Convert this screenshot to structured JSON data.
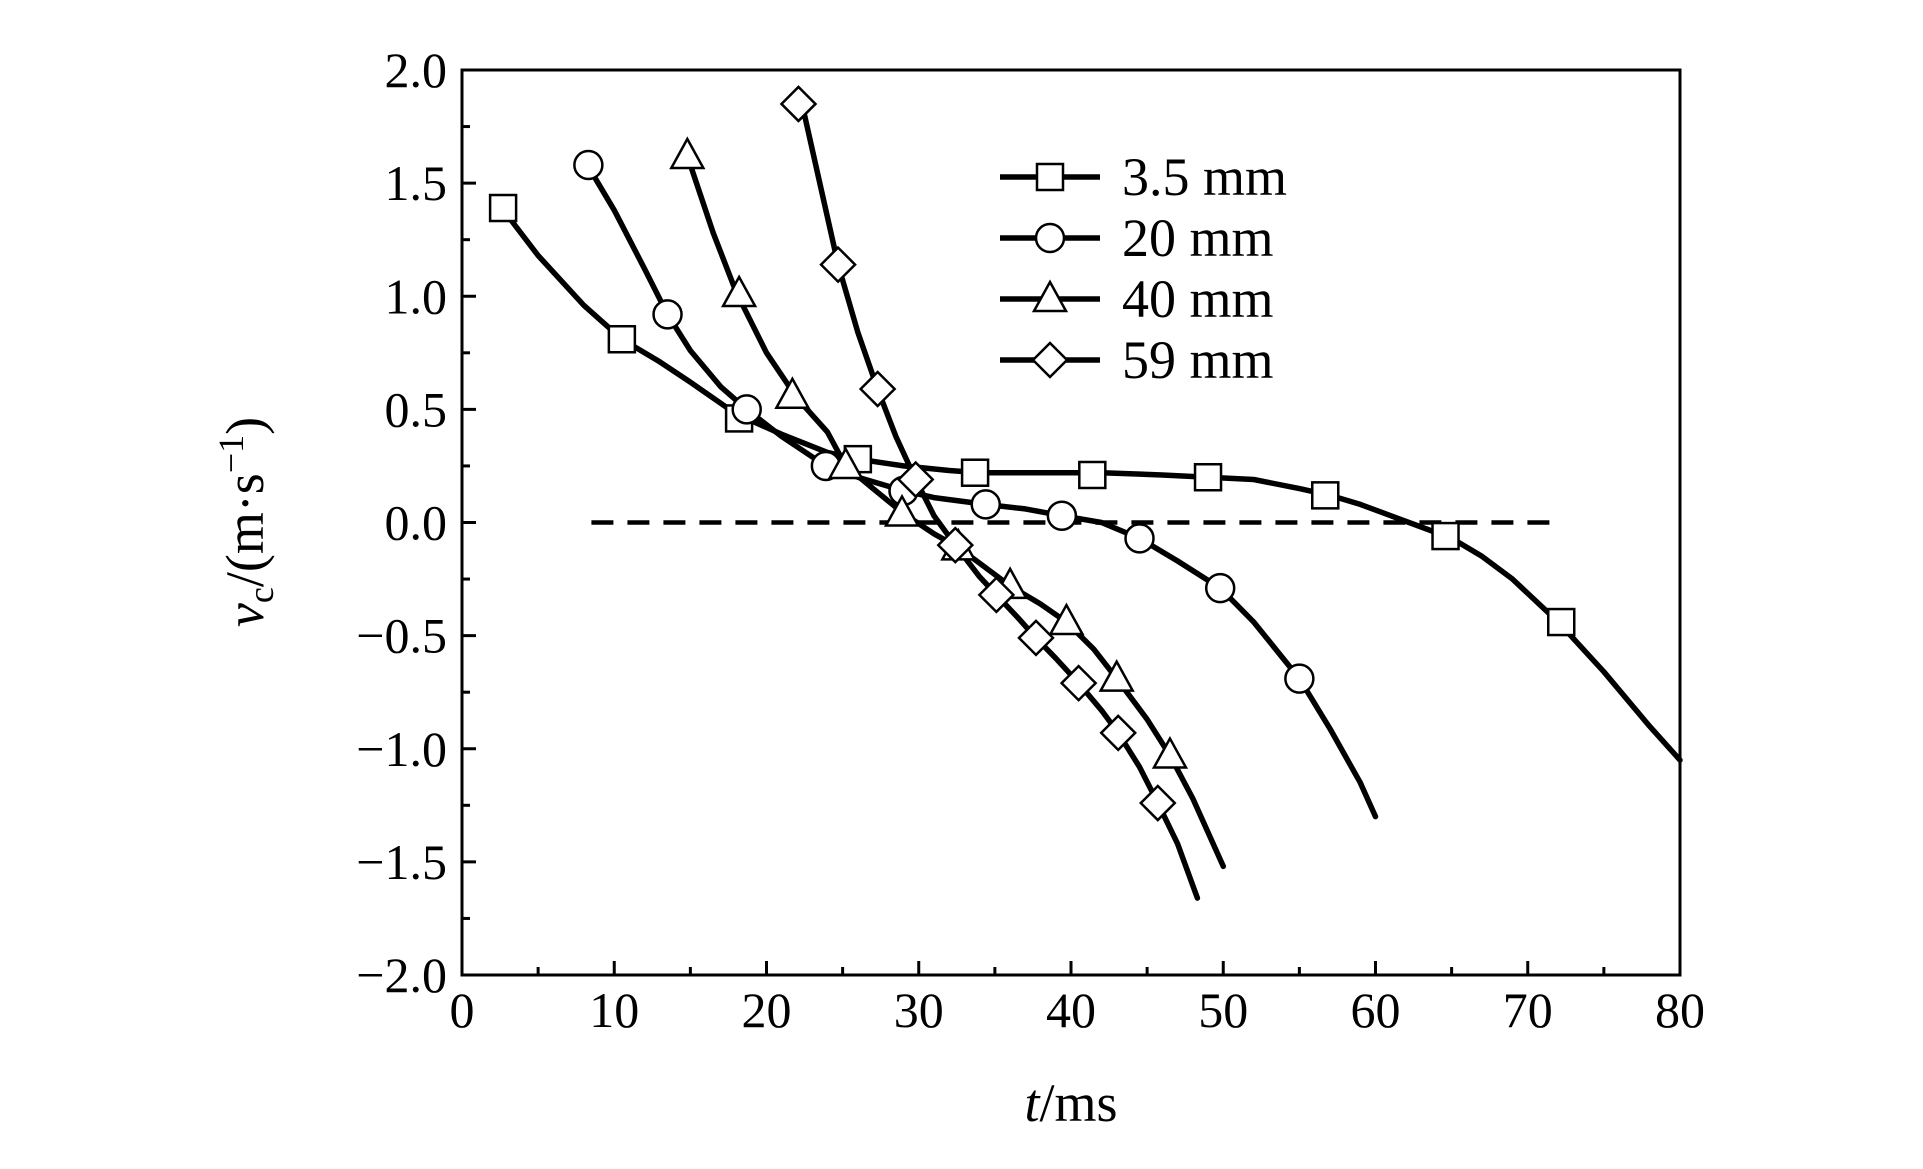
{
  "chart_data": {
    "type": "line",
    "title": "",
    "xlabel": {
      "var": "t",
      "unit": "/ms"
    },
    "ylabel": {
      "var": "v",
      "sub": "c",
      "unit_pre": "/(m·s",
      "unit_sup": "−1",
      "unit_post": ")"
    },
    "xlim": [
      0,
      80
    ],
    "ylim": [
      -2.0,
      2.0
    ],
    "x_ticks": [
      "0",
      "10",
      "20",
      "30",
      "40",
      "50",
      "60",
      "70",
      "80"
    ],
    "y_ticks": [
      "2.0",
      "1.5",
      "1.0",
      "0.5",
      "0.0",
      "−0.5",
      "−1.0",
      "−1.5",
      "−2.0"
    ],
    "x_tick_values": [
      0,
      10,
      20,
      30,
      40,
      50,
      60,
      70,
      80
    ],
    "y_tick_values": [
      2.0,
      1.5,
      1.0,
      0.5,
      0.0,
      -0.5,
      -1.0,
      -1.5,
      -2.0
    ],
    "grid": false,
    "legend_position": "top-center",
    "reference_line": {
      "y": 0.0,
      "x_range": [
        8.5,
        72
      ],
      "style": "dashed"
    },
    "series": [
      {
        "name": "3.5 mm",
        "marker": "square",
        "line": [
          [
            2.5,
            1.4
          ],
          [
            5,
            1.18
          ],
          [
            8,
            0.96
          ],
          [
            10.5,
            0.81
          ],
          [
            13,
            0.71
          ],
          [
            15,
            0.62
          ],
          [
            18,
            0.48
          ],
          [
            21,
            0.39
          ],
          [
            24,
            0.31
          ],
          [
            26,
            0.28
          ],
          [
            29,
            0.25
          ],
          [
            32,
            0.23
          ],
          [
            34,
            0.22
          ],
          [
            38,
            0.22
          ],
          [
            42,
            0.22
          ],
          [
            46,
            0.21
          ],
          [
            49,
            0.2
          ],
          [
            52,
            0.19
          ],
          [
            55,
            0.15
          ],
          [
            57,
            0.12
          ],
          [
            59,
            0.08
          ],
          [
            61,
            0.03
          ],
          [
            63,
            -0.02
          ],
          [
            65,
            -0.07
          ],
          [
            67,
            -0.15
          ],
          [
            69,
            -0.25
          ],
          [
            72,
            -0.44
          ],
          [
            75,
            -0.66
          ],
          [
            78,
            -0.9
          ],
          [
            80,
            -1.05
          ]
        ],
        "markers": [
          [
            2.7,
            1.39
          ],
          [
            10.5,
            0.81
          ],
          [
            18.2,
            0.46
          ],
          [
            26,
            0.28
          ],
          [
            33.7,
            0.22
          ],
          [
            41.4,
            0.21
          ],
          [
            49,
            0.2
          ],
          [
            56.7,
            0.12
          ],
          [
            64.6,
            -0.06
          ],
          [
            72.2,
            -0.44
          ]
        ]
      },
      {
        "name": "20 mm",
        "marker": "circle",
        "line": [
          [
            8.5,
            1.55
          ],
          [
            10,
            1.38
          ],
          [
            12,
            1.12
          ],
          [
            13.5,
            0.92
          ],
          [
            15,
            0.76
          ],
          [
            17,
            0.6
          ],
          [
            18.7,
            0.5
          ],
          [
            21,
            0.38
          ],
          [
            23.9,
            0.25
          ],
          [
            26,
            0.2
          ],
          [
            29,
            0.14
          ],
          [
            31,
            0.11
          ],
          [
            34.4,
            0.08
          ],
          [
            37,
            0.06
          ],
          [
            39.4,
            0.03
          ],
          [
            42,
            0.0
          ],
          [
            44.5,
            -0.07
          ],
          [
            47,
            -0.17
          ],
          [
            49.8,
            -0.29
          ],
          [
            52,
            -0.44
          ],
          [
            55,
            -0.69
          ],
          [
            57,
            -0.91
          ],
          [
            59,
            -1.15
          ],
          [
            60,
            -1.3
          ]
        ],
        "markers": [
          [
            8.3,
            1.58
          ],
          [
            13.5,
            0.92
          ],
          [
            18.7,
            0.5
          ],
          [
            23.9,
            0.25
          ],
          [
            29,
            0.14
          ],
          [
            34.4,
            0.08
          ],
          [
            39.4,
            0.03
          ],
          [
            44.5,
            -0.07
          ],
          [
            49.8,
            -0.29
          ],
          [
            55,
            -0.69
          ]
        ]
      },
      {
        "name": "40 mm",
        "marker": "triangle",
        "line": [
          [
            15,
            1.58
          ],
          [
            16.5,
            1.28
          ],
          [
            18,
            1.02
          ],
          [
            20,
            0.75
          ],
          [
            22,
            0.55
          ],
          [
            24,
            0.4
          ],
          [
            25.2,
            0.25
          ],
          [
            27,
            0.15
          ],
          [
            29,
            0.04
          ],
          [
            31,
            -0.05
          ],
          [
            32.6,
            -0.11
          ],
          [
            34,
            -0.18
          ],
          [
            36,
            -0.28
          ],
          [
            38,
            -0.36
          ],
          [
            39.7,
            -0.44
          ],
          [
            41.5,
            -0.56
          ],
          [
            43,
            -0.69
          ],
          [
            45,
            -0.87
          ],
          [
            46.5,
            -1.03
          ],
          [
            48,
            -1.22
          ],
          [
            50,
            -1.52
          ]
        ],
        "markers": [
          [
            14.8,
            1.62
          ],
          [
            18.2,
            1.01
          ],
          [
            21.7,
            0.56
          ],
          [
            25.2,
            0.25
          ],
          [
            28.9,
            0.04
          ],
          [
            32.6,
            -0.11
          ],
          [
            36,
            -0.28
          ],
          [
            39.7,
            -0.44
          ],
          [
            43,
            -0.69
          ],
          [
            46.5,
            -1.03
          ]
        ]
      },
      {
        "name": "59 mm",
        "marker": "diamond",
        "line": [
          [
            22.5,
            1.8
          ],
          [
            23.5,
            1.5
          ],
          [
            24.7,
            1.14
          ],
          [
            26,
            0.84
          ],
          [
            27.3,
            0.59
          ],
          [
            28.5,
            0.38
          ],
          [
            29.8,
            0.19
          ],
          [
            31,
            0.03
          ],
          [
            32.4,
            -0.1
          ],
          [
            34,
            -0.24
          ],
          [
            35.1,
            -0.32
          ],
          [
            36.5,
            -0.42
          ],
          [
            37.7,
            -0.51
          ],
          [
            39,
            -0.6
          ],
          [
            40.5,
            -0.71
          ],
          [
            42,
            -0.83
          ],
          [
            43.1,
            -0.93
          ],
          [
            44.5,
            -1.08
          ],
          [
            45.7,
            -1.24
          ],
          [
            47,
            -1.42
          ],
          [
            48.3,
            -1.66
          ]
        ],
        "markers": [
          [
            22.1,
            1.85
          ],
          [
            24.7,
            1.14
          ],
          [
            27.3,
            0.59
          ],
          [
            29.8,
            0.19
          ],
          [
            32.4,
            -0.1
          ],
          [
            35.1,
            -0.32
          ],
          [
            37.7,
            -0.51
          ],
          [
            40.5,
            -0.71
          ],
          [
            43.1,
            -0.93
          ],
          [
            45.7,
            -1.24
          ]
        ]
      }
    ]
  }
}
